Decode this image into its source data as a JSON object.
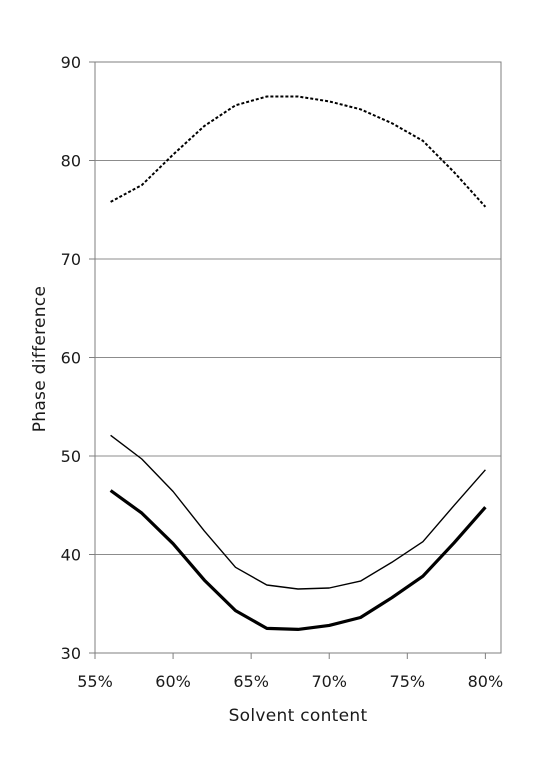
{
  "chart_data": {
    "type": "line",
    "title": "",
    "xlabel": "Solvent content",
    "ylabel": "Phase difference",
    "xlim": [
      0.55,
      0.81
    ],
    "ylim": [
      30,
      90
    ],
    "x_ticks": [
      0.55,
      0.6,
      0.65,
      0.7,
      0.75,
      0.8
    ],
    "x_tick_labels": [
      "55%",
      "60%",
      "65%",
      "70%",
      "75%",
      "80%"
    ],
    "y_ticks": [
      30,
      40,
      50,
      60,
      70,
      80,
      90
    ],
    "y_tick_labels": [
      "30",
      "40",
      "50",
      "60",
      "70",
      "80",
      "90"
    ],
    "grid": "horizontal",
    "legend": "none",
    "x": [
      0.56,
      0.58,
      0.6,
      0.62,
      0.64,
      0.66,
      0.68,
      0.7,
      0.72,
      0.74,
      0.76,
      0.78,
      0.8
    ],
    "series": [
      {
        "style": "dashed",
        "color": "#000000",
        "values": [
          75.8,
          77.5,
          80.6,
          83.5,
          85.6,
          86.5,
          86.5,
          86.0,
          85.2,
          83.8,
          82.0,
          78.8,
          75.3
        ]
      },
      {
        "style": "thin",
        "color": "#000000",
        "values": [
          52.1,
          49.7,
          46.4,
          42.4,
          38.7,
          36.9,
          36.5,
          36.6,
          37.3,
          39.2,
          41.3,
          45.0,
          48.6
        ]
      },
      {
        "style": "thick",
        "color": "#000000",
        "values": [
          46.5,
          44.2,
          41.1,
          37.4,
          34.3,
          32.5,
          32.4,
          32.8,
          33.6,
          35.6,
          37.8,
          41.2,
          44.8
        ]
      }
    ]
  }
}
